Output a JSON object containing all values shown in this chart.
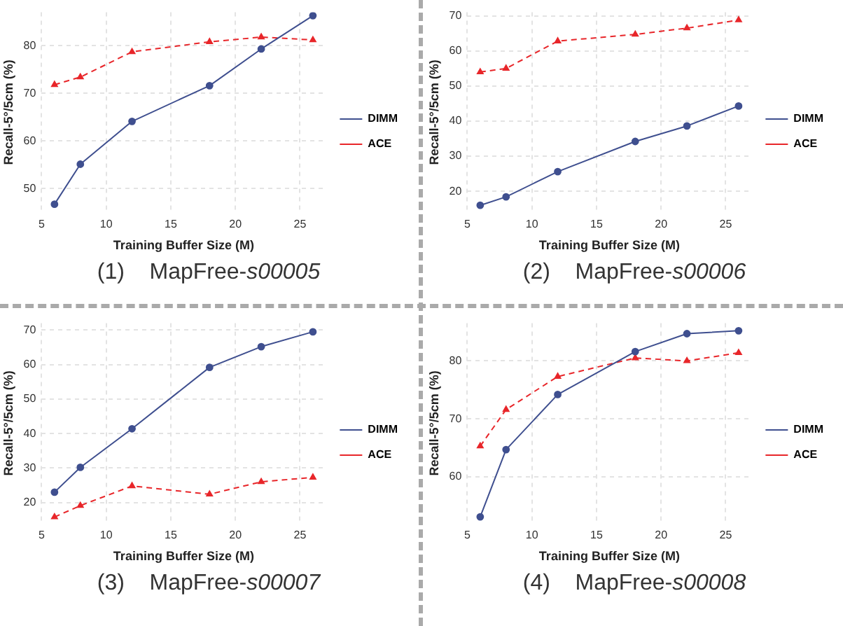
{
  "chart_data": [
    {
      "type": "line",
      "title": "(1)    MapFree-s00005",
      "xlabel": "Training Buffer Size (M)",
      "ylabel": "Recall-5°/5cm (%)",
      "x": [
        6,
        8,
        12,
        18,
        22,
        26
      ],
      "xlim": [
        5,
        27
      ],
      "xticks": [
        5,
        10,
        15,
        20,
        25
      ],
      "ylim": [
        45,
        87
      ],
      "yticks": [
        50,
        60,
        70,
        80
      ],
      "grid": true,
      "legend": "right",
      "series": [
        {
          "name": "DIMM",
          "color": "#3f4f8f",
          "marker": "circle",
          "line_style": "solid",
          "values": [
            46.7,
            55.1,
            64.1,
            71.6,
            79.3,
            86.3
          ]
        },
        {
          "name": "ACE",
          "color": "#e8262a",
          "marker": "triangle",
          "line_style": "dashed",
          "values": [
            71.8,
            73.4,
            78.7,
            80.8,
            81.8,
            81.2
          ]
        }
      ]
    },
    {
      "type": "line",
      "title": "(2)    MapFree-s00006",
      "xlabel": "Training Buffer Size (M)",
      "ylabel": "Recall-5°/5cm (%)",
      "x": [
        6,
        8,
        12,
        18,
        22,
        26
      ],
      "xlim": [
        5,
        27
      ],
      "xticks": [
        5,
        10,
        15,
        20,
        25
      ],
      "ylim": [
        14,
        71
      ],
      "yticks": [
        20,
        30,
        40,
        50,
        60,
        70
      ],
      "grid": true,
      "legend": "right",
      "series": [
        {
          "name": "DIMM",
          "color": "#3f4f8f",
          "marker": "circle",
          "line_style": "solid",
          "values": [
            16.0,
            18.4,
            25.6,
            34.2,
            38.6,
            44.3
          ]
        },
        {
          "name": "ACE",
          "color": "#e8262a",
          "marker": "triangle",
          "line_style": "dashed",
          "values": [
            54.0,
            55.0,
            62.8,
            64.7,
            66.5,
            68.8
          ]
        }
      ]
    },
    {
      "type": "line",
      "title": "(3)    MapFree-s00007",
      "xlabel": "Training Buffer Size (M)",
      "ylabel": "Recall-5°/5cm (%)",
      "x": [
        6,
        8,
        12,
        18,
        22,
        26
      ],
      "xlim": [
        5,
        27
      ],
      "xticks": [
        5,
        10,
        15,
        20,
        25
      ],
      "ylim": [
        14,
        72
      ],
      "yticks": [
        20,
        30,
        40,
        50,
        60,
        70
      ],
      "grid": true,
      "legend": "right",
      "series": [
        {
          "name": "DIMM",
          "color": "#3f4f8f",
          "marker": "circle",
          "line_style": "solid",
          "values": [
            23.0,
            30.2,
            41.4,
            59.2,
            65.2,
            69.5
          ]
        },
        {
          "name": "ACE",
          "color": "#e8262a",
          "marker": "triangle",
          "line_style": "dashed",
          "values": [
            15.8,
            19.1,
            24.8,
            22.4,
            26.0,
            27.3
          ]
        }
      ]
    },
    {
      "type": "line",
      "title": "(4)    MapFree-s00008",
      "xlabel": "Training Buffer Size (M)",
      "ylabel": "Recall-5°/5cm (%)",
      "x": [
        6,
        8,
        12,
        18,
        22,
        26
      ],
      "xlim": [
        5,
        27
      ],
      "xticks": [
        5,
        10,
        15,
        20,
        25
      ],
      "ylim": [
        52,
        86.5
      ],
      "yticks": [
        60,
        70,
        80
      ],
      "grid": true,
      "legend": "right",
      "series": [
        {
          "name": "DIMM",
          "color": "#3f4f8f",
          "marker": "circle",
          "line_style": "solid",
          "values": [
            53.1,
            64.7,
            74.2,
            81.6,
            84.7,
            85.2
          ]
        },
        {
          "name": "ACE",
          "color": "#e8262a",
          "marker": "triangle",
          "line_style": "dashed",
          "values": [
            65.3,
            71.6,
            77.3,
            80.5,
            80.0,
            81.4
          ]
        }
      ]
    }
  ]
}
